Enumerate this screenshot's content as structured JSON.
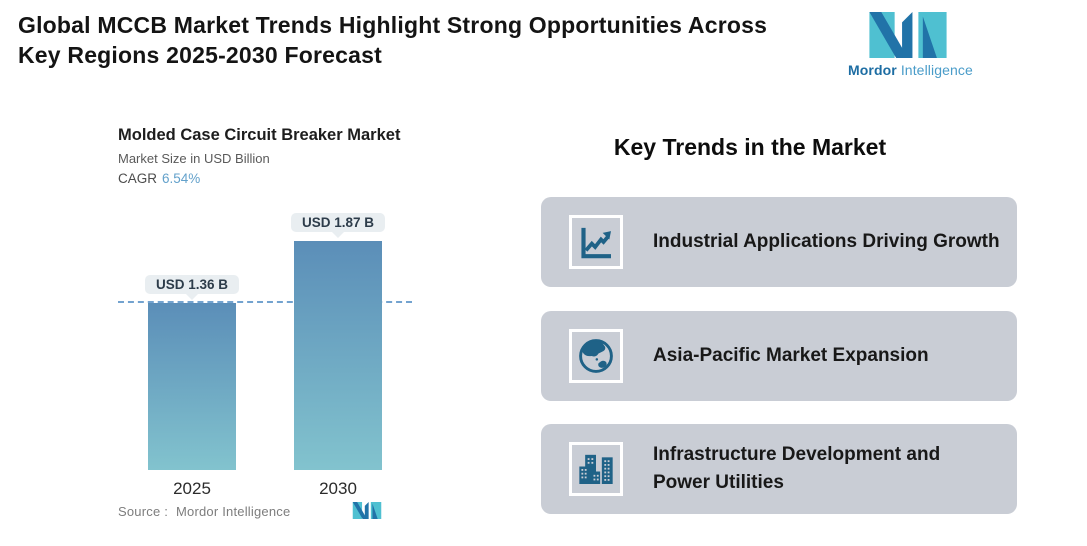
{
  "header": {
    "title_line1": "Global MCCB Market Trends Highlight Strong Opportunities Across",
    "title_line2": "Key Regions 2025-2030 Forecast"
  },
  "brand": {
    "name_primary": "Mordor",
    "name_secondary": " Intelligence",
    "teal": "#4fc0d1",
    "blue": "#2173a8"
  },
  "chart": {
    "title": "Molded Case Circuit Breaker Market",
    "subtitle": "Market Size in USD Billion",
    "cagr_label": "CAGR",
    "cagr_value": "6.54%",
    "source_label": "Source :",
    "source_value": "Mordor Intelligence"
  },
  "chart_data": {
    "type": "bar",
    "title": "Molded Case Circuit Breaker Market",
    "subtitle": "Market Size in USD Billion",
    "cagr_percent": 6.54,
    "categories": [
      "2025",
      "2030"
    ],
    "values": [
      1.36,
      1.87
    ],
    "value_labels": [
      "USD 1.36 B",
      "USD 1.87 B"
    ],
    "unit": "USD Billion",
    "ylim": [
      0,
      2.2
    ],
    "grid": false,
    "legend": false,
    "reference_line": 1.36,
    "bar_gradient_top": "#5b8eb8",
    "bar_gradient_bottom": "#82c3ce",
    "accent_color": "#63a1cb"
  },
  "trends": {
    "heading": "Key Trends in the Market",
    "items": [
      {
        "icon": "line-chart-icon",
        "label": "Industrial Applications Driving Growth"
      },
      {
        "icon": "globe-icon",
        "label": "Asia-Pacific Market Expansion"
      },
      {
        "icon": "buildings-icon",
        "label": "Infrastructure Development and Power Utilities"
      }
    ]
  }
}
